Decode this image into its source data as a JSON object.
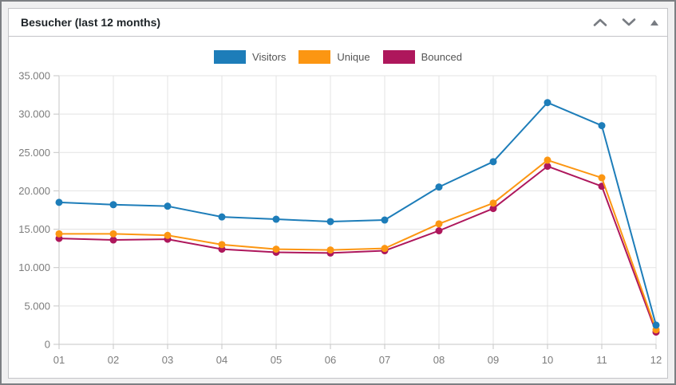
{
  "frame": {
    "background": "#f0f0f1",
    "border_color": "#7c7f83",
    "panel_background": "#ffffff",
    "panel_border_color": "#c3c4c7"
  },
  "widget": {
    "title": "Besucher (last 12 months)",
    "controls": {
      "move_up_icon": "chevron-up-icon",
      "move_down_icon": "chevron-down-icon",
      "collapse_icon": "triangle-up-icon"
    }
  },
  "chart_data": {
    "type": "line",
    "title": "Besucher (last 12 months)",
    "categories": [
      "01",
      "02",
      "03",
      "04",
      "05",
      "06",
      "07",
      "08",
      "09",
      "10",
      "11",
      "12"
    ],
    "series": [
      {
        "name": "Visitors",
        "color": "#1d7db9",
        "values": [
          18500,
          18200,
          18000,
          16600,
          16300,
          16000,
          16200,
          20500,
          23800,
          31500,
          28500,
          2500
        ]
      },
      {
        "name": "Unique",
        "color": "#fc9612",
        "values": [
          14400,
          14400,
          14200,
          13000,
          12400,
          12300,
          12500,
          15700,
          18400,
          24000,
          21700,
          1900
        ]
      },
      {
        "name": "Bounced",
        "color": "#ae175c",
        "values": [
          13800,
          13600,
          13700,
          12400,
          12000,
          11900,
          12200,
          14800,
          17700,
          23200,
          20600,
          1600
        ]
      }
    ],
    "xlabel": "",
    "ylabel": "",
    "ylim": [
      0,
      35000
    ],
    "y_ticks": [
      0,
      5000,
      10000,
      15000,
      20000,
      25000,
      30000,
      35000
    ],
    "y_tick_labels": [
      "0",
      "5.000",
      "10.000",
      "15.000",
      "20.000",
      "25.000",
      "30.000",
      "35.000"
    ],
    "grid": true,
    "legend_position": "top",
    "grid_color": "#e3e3e3",
    "axis_color": "#c6c6c6",
    "tick_label_color": "#7c7c7c",
    "legend_label_color": "#545454",
    "point_radius": 4.5,
    "line_width": 2
  }
}
